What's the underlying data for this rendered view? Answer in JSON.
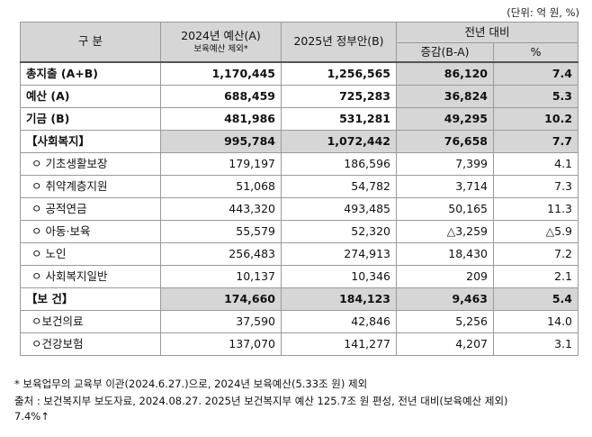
{
  "unit_note": "(단위: 억 원, %)",
  "headers": {
    "category": "구 분",
    "budget2024": "2024년 예산(A)",
    "budget2024_note": "보육예산 제외*",
    "plan2025": "2025년 정부안(B)",
    "yoy": "전년 대비",
    "change": "증감(B-A)",
    "percent": "%"
  },
  "rows": [
    {
      "label": "총지출 (A+B)",
      "a": "1,170,445",
      "b": "1,256,565",
      "diff": "86,120",
      "pct": "7.4"
    },
    {
      "label": "예산 (A)",
      "a": "688,459",
      "b": "725,283",
      "diff": "36,824",
      "pct": "5.3"
    },
    {
      "label": "기금 (B)",
      "a": "481,986",
      "b": "531,281",
      "diff": "49,295",
      "pct": "10.2"
    },
    {
      "label": "【사회복지】",
      "a": "995,784",
      "b": "1,072,442",
      "diff": "76,658",
      "pct": "7.7"
    },
    {
      "label": "ㅇ 기초생활보장",
      "a": "179,197",
      "b": "186,596",
      "diff": "7,399",
      "pct": "4.1"
    },
    {
      "label": "ㅇ 취약계층지원",
      "a": "51,068",
      "b": "54,782",
      "diff": "3,714",
      "pct": "7.3"
    },
    {
      "label": "ㅇ 공적연금",
      "a": "443,320",
      "b": "493,485",
      "diff": "50,165",
      "pct": "11.3"
    },
    {
      "label": "ㅇ 아동·보육",
      "a": "55,579",
      "b": "52,320",
      "diff": "△3,259",
      "pct": "△5.9"
    },
    {
      "label": "ㅇ 노인",
      "a": "256,483",
      "b": "274,913",
      "diff": "18,430",
      "pct": "7.2"
    },
    {
      "label": "ㅇ 사회복지일반",
      "a": "10,137",
      "b": "10,346",
      "diff": "209",
      "pct": "2.1"
    },
    {
      "label": "【보 건】",
      "a": "174,660",
      "b": "184,123",
      "diff": "9,463",
      "pct": "5.4"
    },
    {
      "label": "ㅇ보건의료",
      "a": "37,590",
      "b": "42,846",
      "diff": "5,256",
      "pct": "14.0"
    },
    {
      "label": "ㅇ건강보험",
      "a": "137,070",
      "b": "141,277",
      "diff": "4,207",
      "pct": "3.1"
    }
  ],
  "notes": {
    "line1": "* 보육업무의 교육부 이관(2024.6.27.)으로, 2024년 보육예산(5.33조 원) 제외",
    "line2": "출처 : 보건복지부 보도자료, 2024.08.27. 2025년 보건복지부 예산 125.7조 원 편성, 전년 대비(보육예산 제외)",
    "line3": "7.4%↑"
  }
}
